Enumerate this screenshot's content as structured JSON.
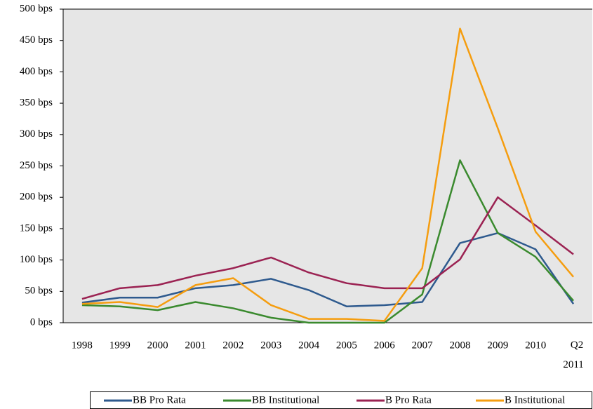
{
  "chart_data": {
    "type": "line",
    "categories": [
      "1998",
      "1999",
      "2000",
      "2001",
      "2002",
      "2003",
      "2004",
      "2005",
      "2006",
      "2007",
      "2008",
      "2009",
      "2010",
      "Q2 2011"
    ],
    "series": [
      {
        "name": "BB Pro Rata",
        "color": "#2e5a8e",
        "values": [
          32,
          40,
          40,
          55,
          60,
          70,
          52,
          26,
          28,
          33,
          127,
          143,
          117,
          30
        ]
      },
      {
        "name": "BB Institutional",
        "color": "#3a8a2e",
        "values": [
          28,
          26,
          20,
          33,
          23,
          8,
          0,
          0,
          0,
          45,
          259,
          143,
          105,
          35
        ]
      },
      {
        "name": "B Pro Rata",
        "color": "#9b2252",
        "values": [
          38,
          55,
          60,
          75,
          87,
          104,
          80,
          63,
          55,
          55,
          101,
          200,
          155,
          109
        ]
      },
      {
        "name": "B Institutional",
        "color": "#f59d0f",
        "values": [
          30,
          33,
          25,
          60,
          71,
          28,
          6,
          6,
          3,
          87,
          469,
          310,
          145,
          73
        ]
      }
    ],
    "ylim": [
      0,
      500
    ],
    "yticks": [
      {
        "value": 0,
        "label": "0 bps"
      },
      {
        "value": 50,
        "label": "50 bps"
      },
      {
        "value": 100,
        "label": "100 bps"
      },
      {
        "value": 150,
        "label": "150 bps"
      },
      {
        "value": 200,
        "label": "200 bps"
      },
      {
        "value": 250,
        "label": "250 bps"
      },
      {
        "value": 300,
        "label": "300 bps"
      },
      {
        "value": 350,
        "label": "350 bps"
      },
      {
        "value": 400,
        "label": "400 bps"
      },
      {
        "value": 450,
        "label": "450 bps"
      },
      {
        "value": 500,
        "label": "500 bps"
      }
    ],
    "grid": false,
    "legend": "bottom"
  }
}
